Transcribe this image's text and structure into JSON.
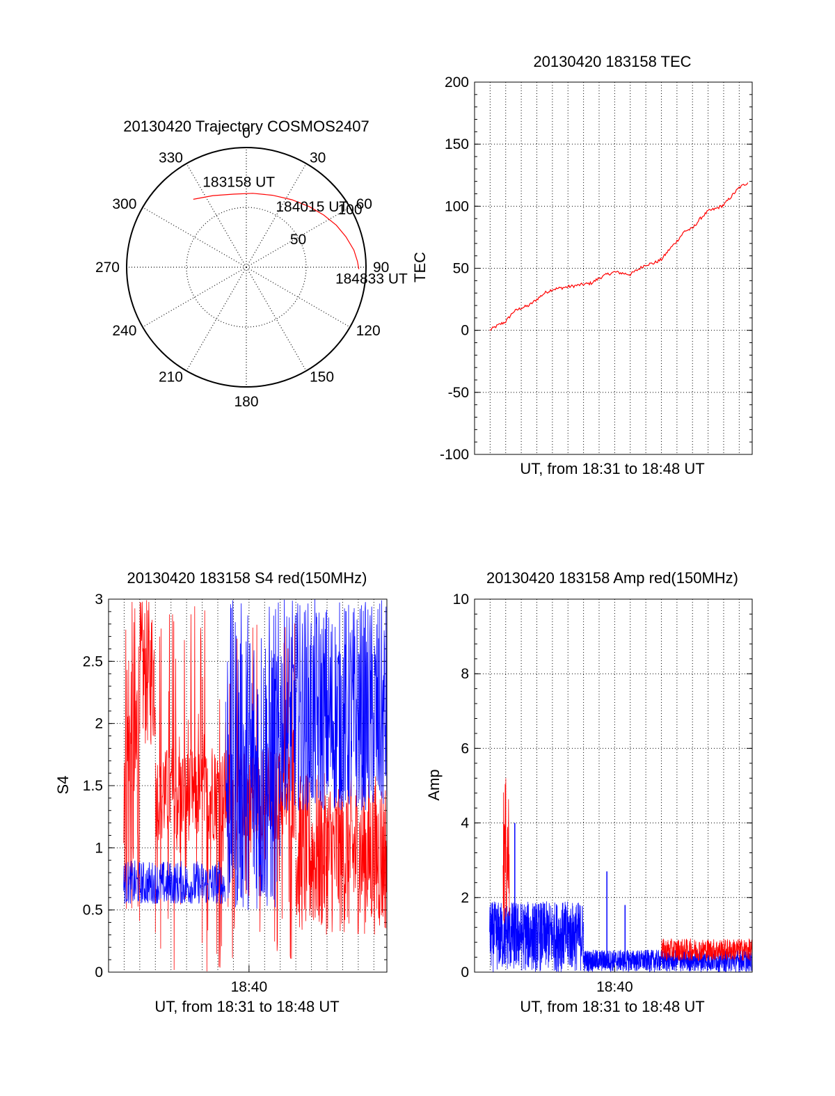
{
  "colors": {
    "red": "#ff0000",
    "blue": "#0000ff",
    "axis": "#000000",
    "grid": "#000000",
    "background": "#ffffff"
  },
  "chart_data": [
    {
      "id": "trajectory",
      "type": "polar",
      "title": "20130420 Trajectory COSMOS2407",
      "azimuth_ticks": [
        "0",
        "30",
        "60",
        "90",
        "120",
        "150",
        "180",
        "210",
        "240",
        "270",
        "300",
        "330"
      ],
      "azimuth_values": [
        0,
        30,
        60,
        90,
        120,
        150,
        180,
        210,
        240,
        270,
        300,
        330
      ],
      "radius_ticks": [
        "50",
        "100"
      ],
      "radius_values": [
        50,
        100
      ],
      "radius_max": 100,
      "grid": true,
      "series": [
        {
          "color": "red",
          "points": [
            {
              "az": 322,
              "zen": 72
            },
            {
              "az": 335,
              "zen": 66
            },
            {
              "az": 350,
              "zen": 62
            },
            {
              "az": 5,
              "zen": 62
            },
            {
              "az": 20,
              "zen": 64
            },
            {
              "az": 34,
              "zen": 68
            },
            {
              "az": 46,
              "zen": 73
            },
            {
              "az": 56,
              "zen": 78
            },
            {
              "az": 65,
              "zen": 83
            },
            {
              "az": 73,
              "zen": 87
            },
            {
              "az": 81,
              "zen": 91
            },
            {
              "az": 87,
              "zen": 93
            },
            {
              "az": 91,
              "zen": 94
            }
          ]
        }
      ],
      "annotations": [
        {
          "text": "183158 UT",
          "az": 355,
          "zen": 72
        },
        {
          "text": "184015 UT",
          "az": 47,
          "zen": 75
        },
        {
          "text": "184833 UT",
          "az": 95,
          "zen": 105
        }
      ]
    },
    {
      "id": "tec",
      "type": "line",
      "title": "20130420 183158 TEC",
      "xlabel": "UT, from 18:31 to 18:48 UT",
      "ylabel": "TEC",
      "x_range": [
        "18:31:00",
        "18:48:50"
      ],
      "ylim": [
        -100,
        200
      ],
      "yticks": [
        "200",
        "150",
        "100",
        "50",
        "0",
        "-50",
        "-100"
      ],
      "ytick_values": [
        200,
        150,
        100,
        50,
        0,
        -50,
        -100
      ],
      "grid": true,
      "series": [
        {
          "color": "red",
          "x": [
            "18:31:58",
            "18:32:30",
            "18:33:00",
            "18:33:30",
            "18:34:00",
            "18:34:30",
            "18:35:00",
            "18:35:30",
            "18:36:00",
            "18:36:30",
            "18:37:00",
            "18:37:30",
            "18:38:00",
            "18:38:30",
            "18:39:00",
            "18:39:30",
            "18:40:00",
            "18:40:30",
            "18:41:00",
            "18:41:30",
            "18:42:00",
            "18:42:30",
            "18:43:00",
            "18:43:30",
            "18:44:00",
            "18:44:30",
            "18:45:00",
            "18:45:30",
            "18:46:00",
            "18:46:30",
            "18:47:00",
            "18:47:30",
            "18:48:00",
            "18:48:33"
          ],
          "y": [
            0,
            4,
            7,
            15,
            18,
            20,
            25,
            30,
            33,
            34,
            35,
            36,
            37,
            38,
            42,
            45,
            47,
            46,
            45,
            49,
            53,
            54,
            57,
            65,
            72,
            80,
            82,
            90,
            96,
            98,
            101,
            108,
            115,
            119
          ]
        }
      ]
    },
    {
      "id": "s4",
      "type": "line",
      "title": "20130420 183158 S4 red(150MHz)",
      "xlabel": "UT, from 18:31 to 18:48 UT",
      "ylabel": "S4",
      "x_range": [
        "18:31:00",
        "18:48:50"
      ],
      "xticks": [
        "18:40"
      ],
      "ylim": [
        0,
        3
      ],
      "yticks": [
        "3",
        "2.5",
        "2",
        "1.5",
        "1",
        "0.5",
        "0"
      ],
      "ytick_values": [
        3,
        2.5,
        2,
        1.5,
        1,
        0.5,
        0
      ],
      "grid": true,
      "series": [
        {
          "color": "red",
          "time_start": "18:31:58",
          "time_end": "18:48:50",
          "segments": [
            {
              "from": "18:31:58",
              "to": "18:33:00",
              "low": 0.4,
              "high": 3.0
            },
            {
              "from": "18:33:00",
              "to": "18:34:00",
              "low": 1.8,
              "high": 3.0
            },
            {
              "from": "18:34:00",
              "to": "18:37:00",
              "low": 0.0,
              "high": 3.0,
              "sparse": true
            },
            {
              "from": "18:37:00",
              "to": "18:43:00",
              "low": 0.0,
              "high": 3.0,
              "sparse": true
            },
            {
              "from": "18:43:00",
              "to": "18:48:50",
              "low": 0.3,
              "high": 1.6
            }
          ]
        },
        {
          "color": "blue",
          "time_start": "18:31:58",
          "time_end": "18:48:50",
          "segments": [
            {
              "from": "18:31:58",
              "to": "18:38:30",
              "low": 0.55,
              "high": 0.9
            },
            {
              "from": "18:38:30",
              "to": "18:42:00",
              "low": 0.5,
              "high": 3.0
            },
            {
              "from": "18:42:00",
              "to": "18:48:50",
              "low": 1.3,
              "high": 3.0
            }
          ]
        }
      ]
    },
    {
      "id": "amp",
      "type": "line",
      "title": "20130420 183158 Amp red(150MHz)",
      "xlabel": "UT, from 18:31 to 18:48 UT",
      "ylabel": "Amp",
      "x_range": [
        "18:31:00",
        "18:48:50"
      ],
      "xticks": [
        "18:40"
      ],
      "ylim": [
        0,
        10
      ],
      "yticks": [
        "10",
        "8",
        "6",
        "4",
        "2",
        "0"
      ],
      "ytick_values": [
        10,
        8,
        6,
        4,
        2,
        0
      ],
      "grid": true,
      "series": [
        {
          "color": "red",
          "segments": [
            {
              "from": "18:32:50",
              "to": "18:33:15",
              "low": 1.2,
              "high": 5.2
            },
            {
              "from": "18:43:00",
              "to": "18:48:50",
              "low": 0.3,
              "high": 0.9
            }
          ]
        },
        {
          "color": "blue",
          "segments": [
            {
              "from": "18:31:58",
              "to": "18:38:00",
              "low": 0.0,
              "high": 1.9
            },
            {
              "from": "18:38:00",
              "to": "18:48:50",
              "low": 0.0,
              "high": 0.6
            }
          ],
          "spikes": [
            {
              "t": "18:33:35",
              "value": 4.0
            },
            {
              "t": "18:39:30",
              "value": 2.7
            },
            {
              "t": "18:40:40",
              "value": 1.8
            }
          ]
        }
      ]
    }
  ]
}
